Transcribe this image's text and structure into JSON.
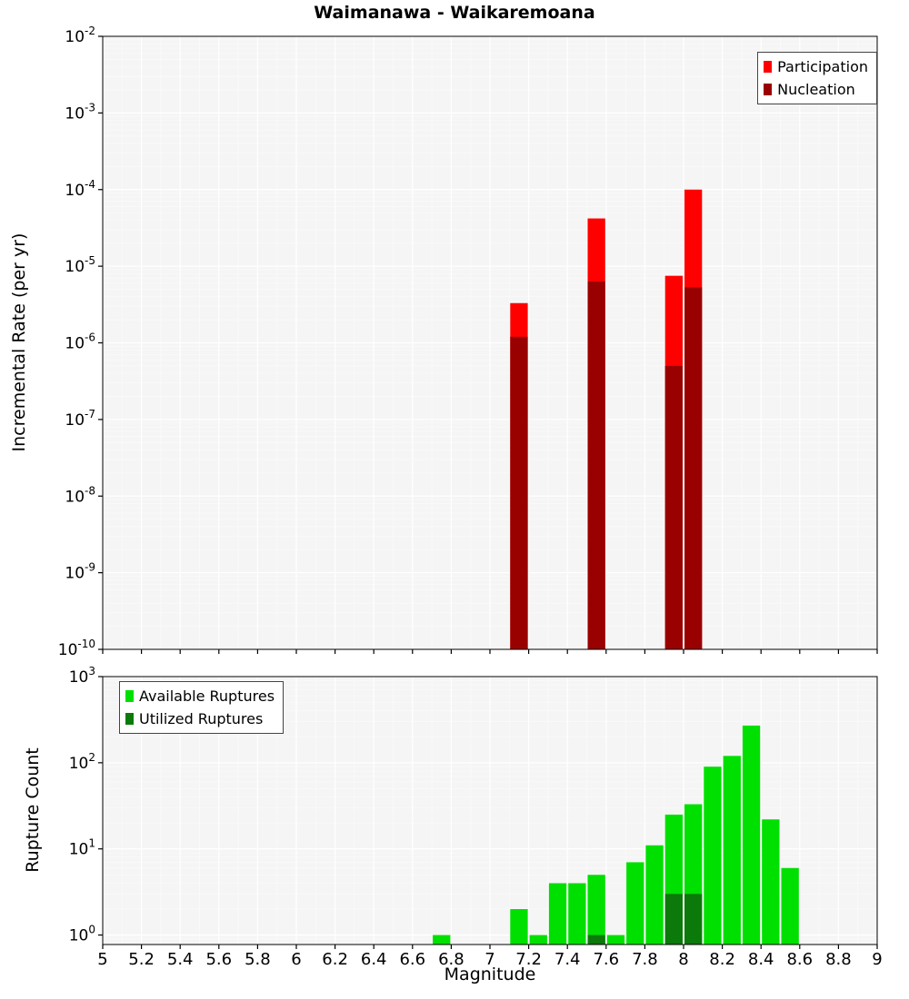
{
  "chart_data": [
    {
      "type": "bar",
      "title": "Waimanawa - Waikaremoana",
      "ylabel": "Incremental Rate (per yr)",
      "y_scale": "log",
      "ylim": [
        1e-10,
        0.01
      ],
      "xlim": [
        5,
        9
      ],
      "bin_width": 0.1,
      "legend_position": "top-right",
      "grid": "on",
      "series": [
        {
          "name": "Participation",
          "color": "#ff0000",
          "points": [
            [
              7.15,
              3.3e-06
            ],
            [
              7.55,
              4.2e-05
            ],
            [
              7.95,
              7.5e-06
            ],
            [
              8.05,
              0.0001
            ]
          ]
        },
        {
          "name": "Nucleation",
          "color": "#990000",
          "points": [
            [
              7.15,
              1.2e-06
            ],
            [
              7.55,
              6.3e-06
            ],
            [
              7.95,
              5e-07
            ],
            [
              8.05,
              5.3e-06
            ]
          ]
        }
      ]
    },
    {
      "type": "bar",
      "ylabel": "Rupture Count",
      "xlabel": "Magnitude",
      "y_scale": "log",
      "ylim": [
        1,
        1000
      ],
      "xlim": [
        5,
        9
      ],
      "bin_width": 0.1,
      "legend_position": "top-left",
      "grid": "on",
      "xticks": [
        "5",
        "5.2",
        "5.4",
        "5.6",
        "5.8",
        "6",
        "6.2",
        "6.4",
        "6.6",
        "6.8",
        "7",
        "7.2",
        "7.4",
        "7.6",
        "7.8",
        "8",
        "8.2",
        "8.4",
        "8.6",
        "8.8",
        "9"
      ],
      "series": [
        {
          "name": "Available Ruptures",
          "color": "#00e000",
          "points": [
            [
              6.75,
              1
            ],
            [
              7.15,
              2
            ],
            [
              7.25,
              1
            ],
            [
              7.35,
              4
            ],
            [
              7.45,
              4
            ],
            [
              7.55,
              5
            ],
            [
              7.65,
              1
            ],
            [
              7.75,
              7
            ],
            [
              7.85,
              11
            ],
            [
              7.95,
              25
            ],
            [
              8.05,
              33
            ],
            [
              8.15,
              90
            ],
            [
              8.25,
              120
            ],
            [
              8.35,
              270
            ],
            [
              8.45,
              22
            ],
            [
              8.55,
              6
            ]
          ]
        },
        {
          "name": "Utilized Ruptures",
          "color": "#0b7a0b",
          "points": [
            [
              7.55,
              1
            ],
            [
              7.95,
              3
            ],
            [
              8.05,
              3
            ]
          ]
        }
      ]
    }
  ]
}
